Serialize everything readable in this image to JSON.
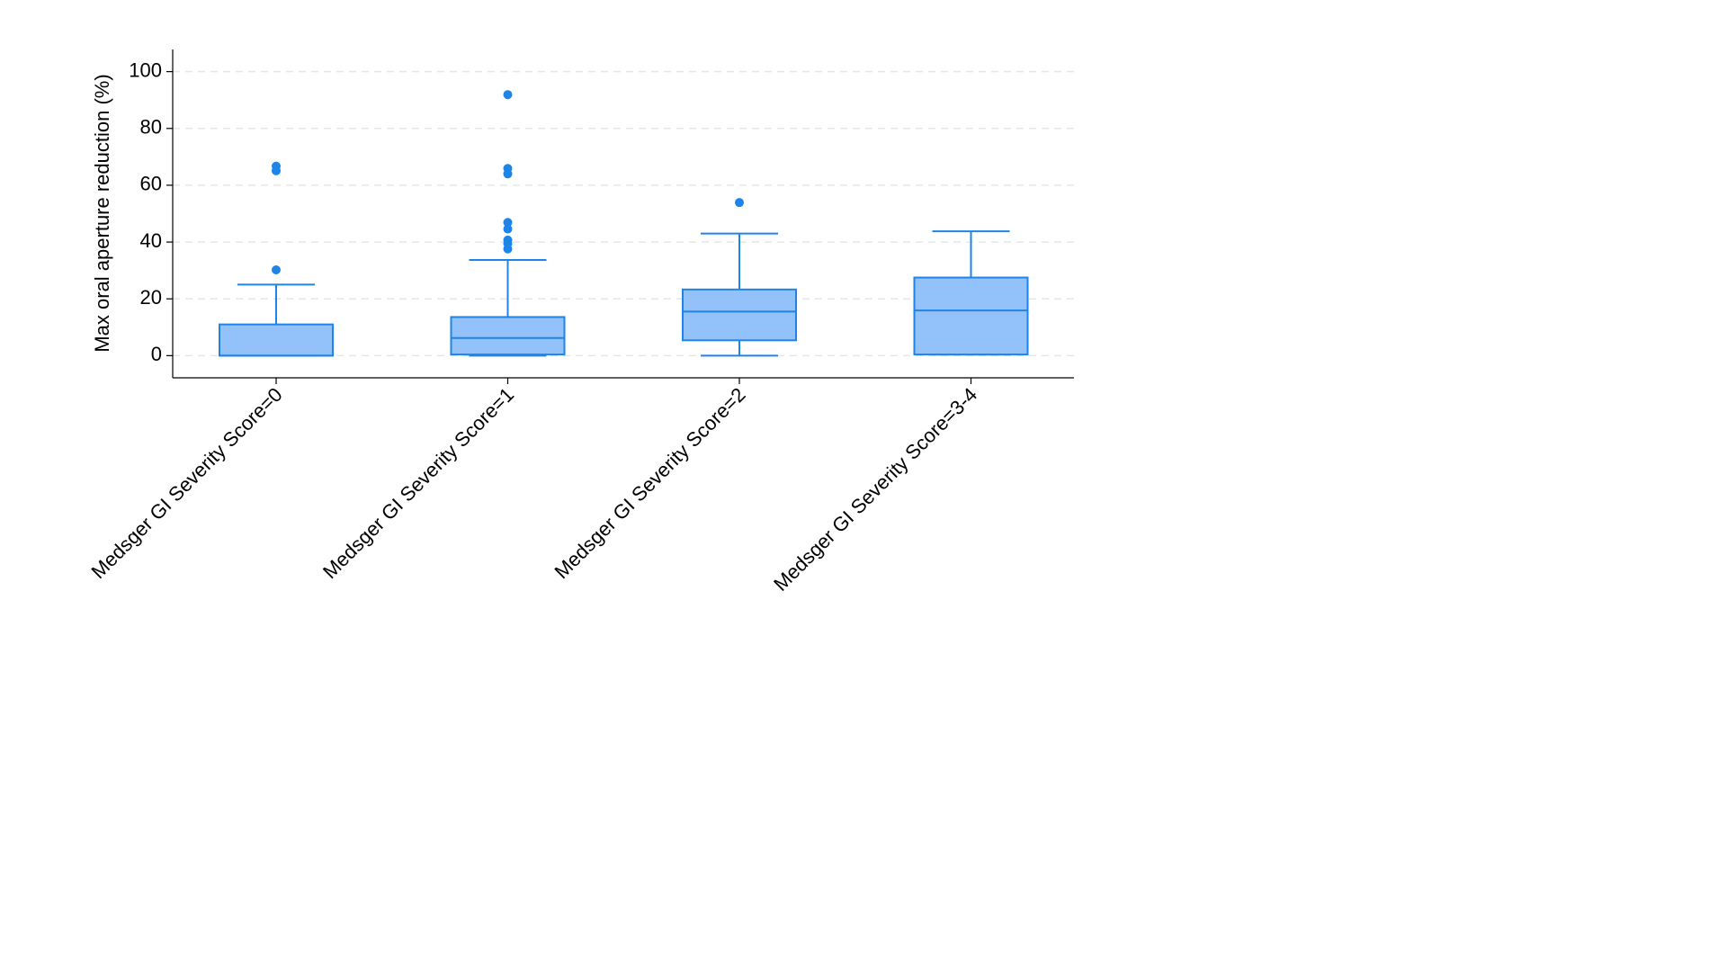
{
  "chart_data": {
    "type": "box",
    "y_label": "Max oral aperture reduction (%)",
    "categories": [
      "Medsger GI Severity Score=0",
      "Medsger GI Severity Score=1",
      "Medsger GI Severity Score=2",
      "Medsger GI Severity Score=3-4"
    ],
    "color": "#1f84e8",
    "fill": "#92c2f9",
    "boxes": [
      {
        "min": 0,
        "q1": 0,
        "median": 0,
        "q3": 11,
        "max": 25,
        "outliers": [
          30.2,
          65.1,
          66.7
        ]
      },
      {
        "min": 0,
        "q1": 0.4,
        "median": 6.2,
        "q3": 13.6,
        "max": 33.7,
        "outliers": [
          37.6,
          39.5,
          40.7,
          44.6,
          46.9,
          64,
          65.9,
          91.9
        ]
      },
      {
        "min": 0,
        "q1": 5.4,
        "median": 15.5,
        "q3": 23.3,
        "max": 43,
        "outliers": [
          53.9
        ]
      },
      {
        "min": 0.4,
        "q1": 0.4,
        "median": 15.9,
        "q3": 27.5,
        "max": 43.8,
        "outliers": []
      }
    ],
    "ylim": [
      -7.8,
      107.8
    ],
    "yticks": [
      0,
      20,
      40,
      60,
      80,
      100
    ],
    "grid": true
  }
}
